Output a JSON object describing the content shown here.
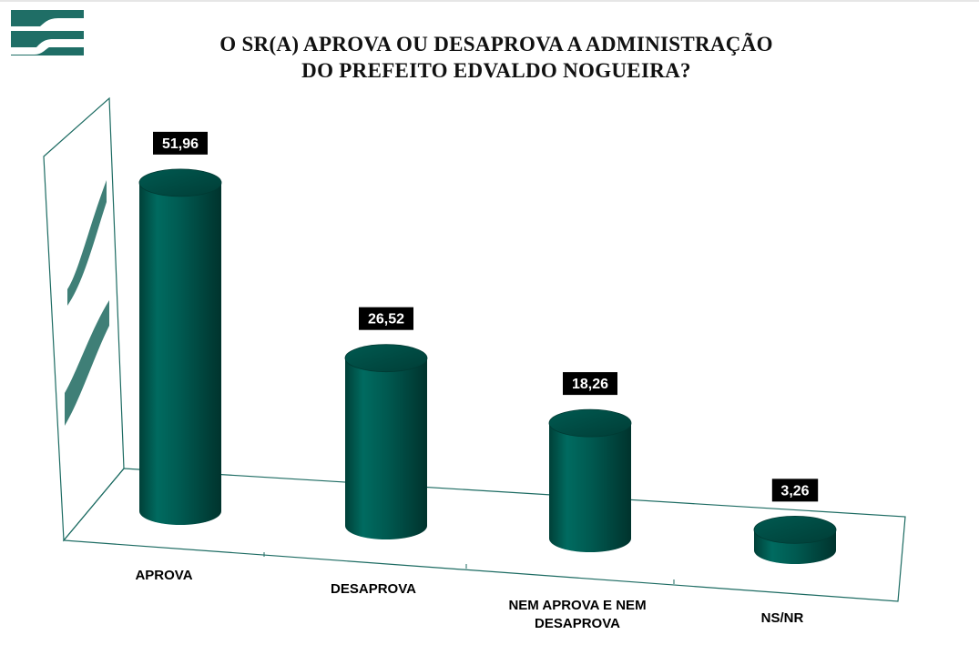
{
  "header": {
    "title_line1": "O SR(A) APROVA OU DESAPROVA A ADMINISTRAÇÃO",
    "title_line2": "DO PREFEITO EDVALDO NOGUEIRA?"
  },
  "colors": {
    "bar": "#00574e",
    "bar_top": "#004a42",
    "frame": "#1c6b62",
    "label_bg": "#000000",
    "label_text": "#ffffff"
  },
  "chart_data": {
    "type": "bar",
    "style": "3d-cylinder",
    "title": "O SR(A) APROVA OU DESAPROVA A ADMINISTRAÇÃO DO PREFEITO EDVALDO NOGUEIRA?",
    "categories": [
      [
        "APROVA"
      ],
      [
        "DESAPROVA"
      ],
      [
        "NEM APROVA E NEM",
        "DESAPROVA"
      ],
      [
        "NS/NR"
      ]
    ],
    "values": [
      51.96,
      26.52,
      18.26,
      3.26
    ],
    "value_labels": [
      "51,96",
      "26,52",
      "18,26",
      "3,26"
    ],
    "xlabel": "",
    "ylabel": "",
    "ylim": [
      0,
      55
    ],
    "grid": false,
    "legend": "none"
  }
}
